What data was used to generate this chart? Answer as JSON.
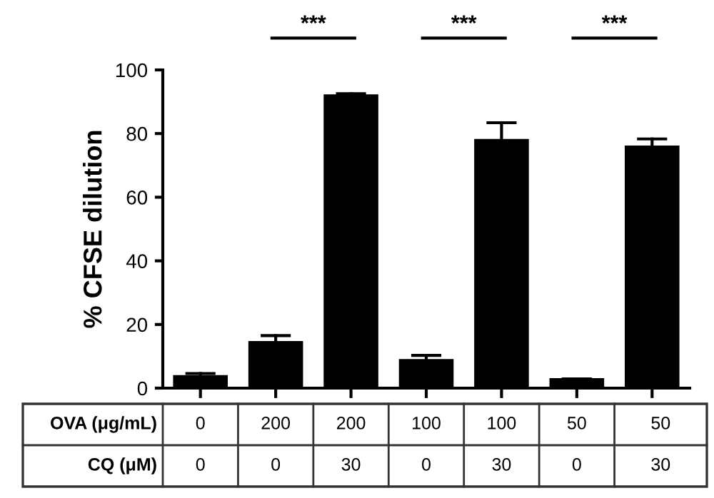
{
  "chart_data": {
    "type": "bar",
    "ylabel": "% CFSE dilution",
    "categories": [
      "0\n0",
      "200\n0",
      "200\n30",
      "100\n0",
      "100\n30",
      "50\n0",
      "50\n30"
    ],
    "values": [
      3.8,
      14.5,
      92,
      8.8,
      78,
      2.8,
      75.9
    ],
    "errors": [
      0.8,
      2.0,
      0.5,
      1.5,
      5.4,
      0.1,
      2.4
    ],
    "color": "#000000",
    "ylim": [
      0,
      100
    ],
    "yticks": [
      0,
      20,
      40,
      60,
      80,
      100
    ],
    "grid": false,
    "annotations": [
      "***",
      "***",
      "***",
      "OVA (μg/mL)\nCQ (μM)"
    ]
  }
}
